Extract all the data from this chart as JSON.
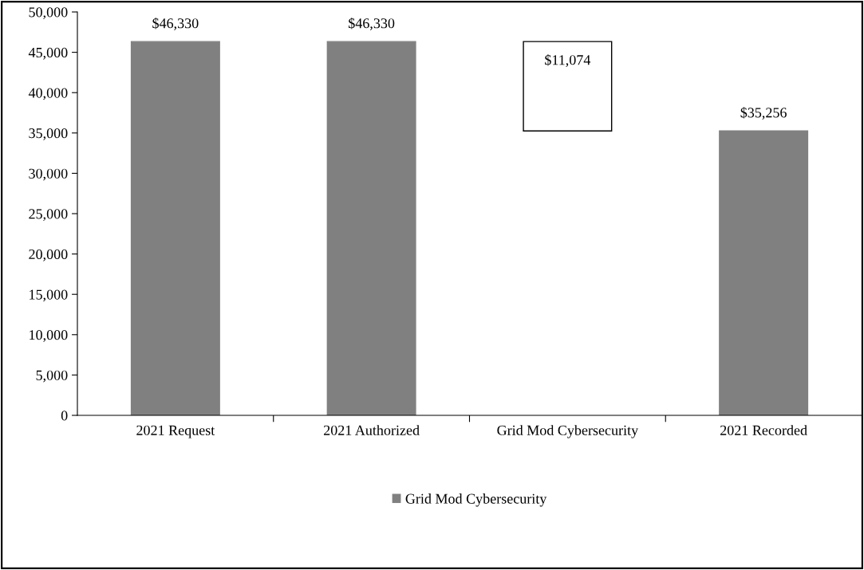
{
  "chart_data": {
    "type": "bar",
    "categories": [
      "2021 Request",
      "2021 Authorized",
      "Grid Mod Cybersecurity",
      "2021 Recorded"
    ],
    "series": [
      {
        "name": "Grid Mod Cybersecurity",
        "color": "#808080",
        "colors": [
          "#808080",
          "#808080",
          "#ffffff",
          "#808080"
        ],
        "values": [
          46330,
          46330,
          11074,
          35256
        ],
        "base": [
          0,
          0,
          35256,
          0
        ],
        "value_labels": [
          "$46,330",
          "$46,330",
          "$11,074",
          "$35,256"
        ]
      }
    ],
    "ylim": [
      0,
      50000
    ],
    "yticks": [
      {
        "value": 0,
        "label": "0"
      },
      {
        "value": 5000,
        "label": "5,000"
      },
      {
        "value": 10000,
        "label": "10,000"
      },
      {
        "value": 15000,
        "label": "15,000"
      },
      {
        "value": 20000,
        "label": "20,000"
      },
      {
        "value": 25000,
        "label": "25,000"
      },
      {
        "value": 30000,
        "label": "30,000"
      },
      {
        "value": 35000,
        "label": "35,000"
      },
      {
        "value": 40000,
        "label": "40,000"
      },
      {
        "value": 45000,
        "label": "45,000"
      },
      {
        "value": 50000,
        "label": "50,000"
      }
    ],
    "grid": false,
    "legend": "bottom"
  }
}
